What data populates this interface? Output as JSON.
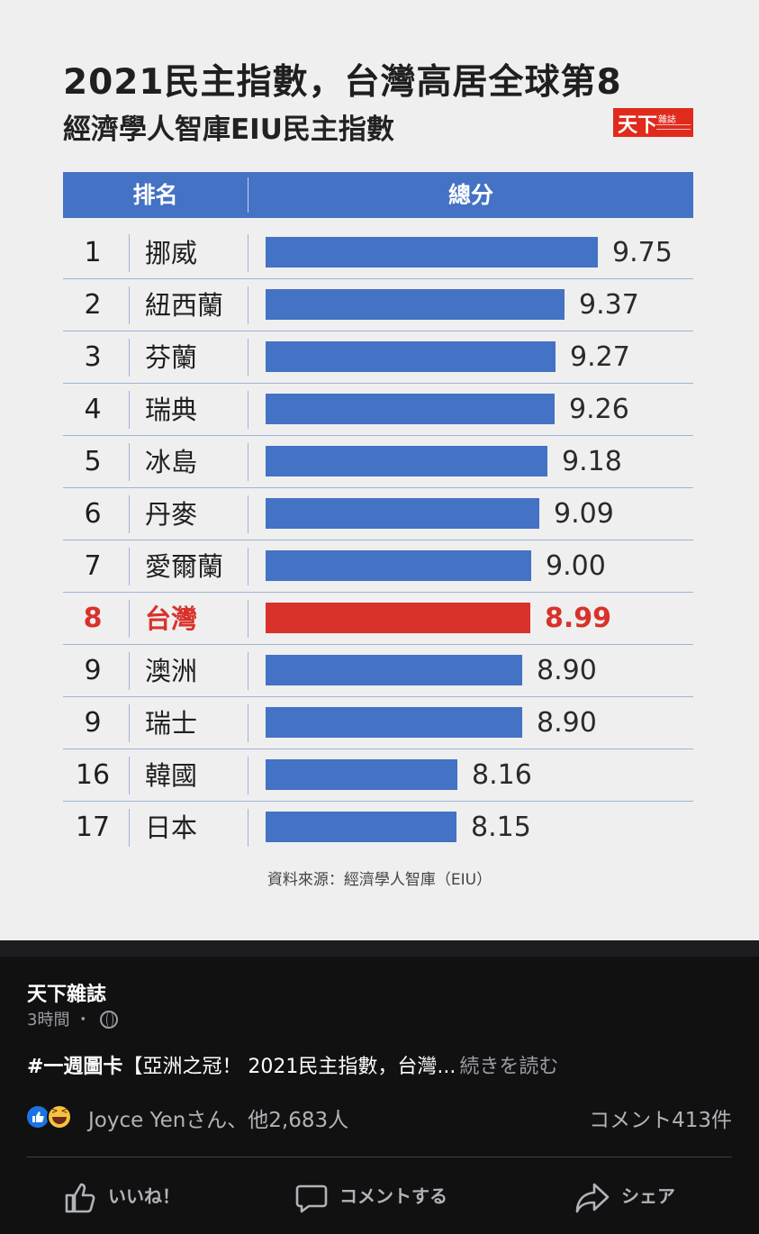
{
  "card": {
    "title": "2021民主指數，台灣高居全球第8",
    "subtitle": "經濟學人智庫EIU民主指數",
    "logo": {
      "big": "天下",
      "small": "雜誌"
    },
    "header": {
      "rank": "排名",
      "score": "總分"
    },
    "source": "資料來源：經濟學人智庫（EIU）"
  },
  "chart_data": {
    "type": "bar",
    "title": "2021民主指數，台灣高居全球第8",
    "subtitle": "經濟學人智庫EIU民主指數",
    "orientation": "horizontal",
    "highlight_color": "#d8322b",
    "bar_color": "#4472c4",
    "rows": [
      {
        "rank": "1",
        "country": "挪威",
        "value": 9.75,
        "label": "9.75"
      },
      {
        "rank": "2",
        "country": "紐西蘭",
        "value": 9.37,
        "label": "9.37"
      },
      {
        "rank": "3",
        "country": "芬蘭",
        "value": 9.27,
        "label": "9.27"
      },
      {
        "rank": "4",
        "country": "瑞典",
        "value": 9.26,
        "label": "9.26"
      },
      {
        "rank": "5",
        "country": "冰島",
        "value": 9.18,
        "label": "9.18"
      },
      {
        "rank": "6",
        "country": "丹麥",
        "value": 9.09,
        "label": "9.09"
      },
      {
        "rank": "7",
        "country": "愛爾蘭",
        "value": 9.0,
        "label": "9.00"
      },
      {
        "rank": "8",
        "country": "台灣",
        "value": 8.99,
        "label": "8.99",
        "highlight": true
      },
      {
        "rank": "9",
        "country": "澳洲",
        "value": 8.9,
        "label": "8.90"
      },
      {
        "rank": "9",
        "country": "瑞士",
        "value": 8.9,
        "label": "8.90"
      },
      {
        "rank": "16",
        "country": "韓國",
        "value": 8.16,
        "label": "8.16"
      },
      {
        "rank": "17",
        "country": "日本",
        "value": 8.15,
        "label": "8.15"
      }
    ]
  },
  "post": {
    "page_name": "天下雜誌",
    "time": "3時間",
    "separator": "・",
    "text_tag": "#一週圖卡",
    "text_body": "【亞洲之冠！ 2021民主指數，台灣...",
    "see_more": "続きを読む",
    "reactions_text": "Joyce Yenさん、他2,683人",
    "comments_count": "コメント413件",
    "actions": {
      "like": "いいね！",
      "comment": "コメントする",
      "share": "シェア"
    }
  }
}
